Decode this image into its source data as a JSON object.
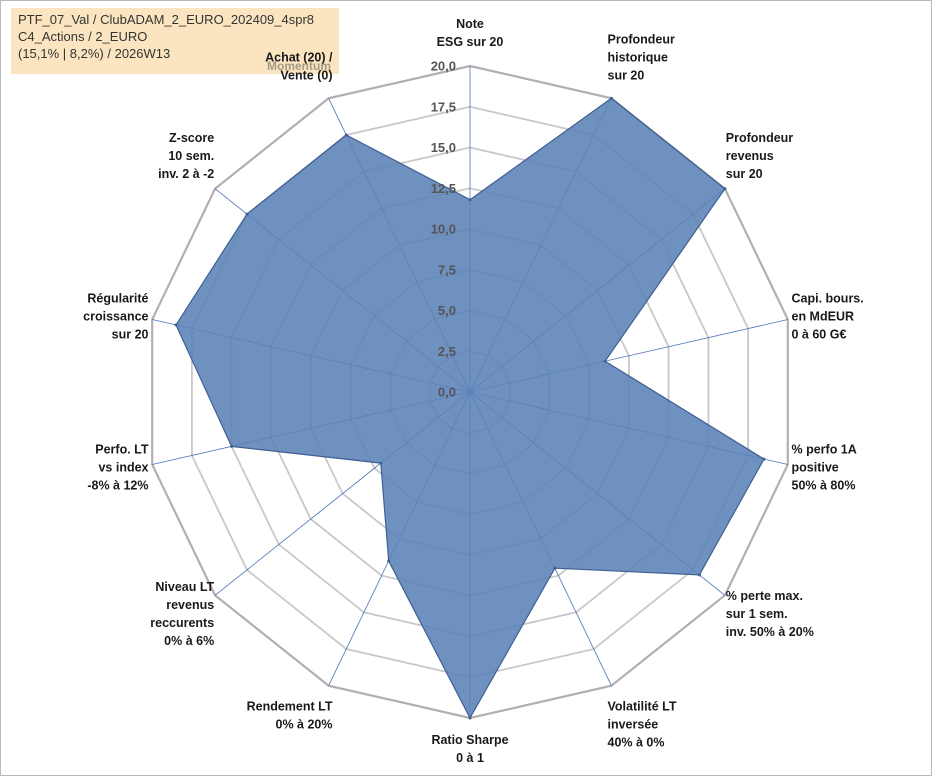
{
  "info": {
    "line1": "PTF_07_Val / ClubADAM_2_EURO_202409_4spr8",
    "line2": "C4_Actions / 2_EURO",
    "line3": "(15,1% | 8,2%) / 2026W13"
  },
  "momentum_label": "Momentum",
  "colors": {
    "fill": "#5b82b7",
    "stroke": "#3e5f92",
    "grid": "#c8c8c8",
    "outer_grid": "#b0b0b0",
    "spoke": "#4a74b8"
  },
  "chart_data": {
    "type": "radar",
    "rmin": 0,
    "rmax": 20,
    "ticks": [
      "0,0",
      "2,5",
      "5,0",
      "7,5",
      "10,0",
      "12,5",
      "15,0",
      "17,5",
      "20,0"
    ],
    "categories": [
      [
        "Note",
        "ESG sur 20"
      ],
      [
        "Profondeur",
        "historique",
        "sur 20"
      ],
      [
        "Profondeur",
        "revenus",
        "sur 20"
      ],
      [
        "Capi. bours.",
        "en MdEUR",
        "0 à 60 G€"
      ],
      [
        "% perfo 1A",
        "positive",
        "50% à 80%"
      ],
      [
        "% perte max.",
        "sur 1 sem.",
        "inv. 50% à 20%"
      ],
      [
        "Volatilité LT",
        "inversée",
        "40% à 0%"
      ],
      [
        "Ratio Sharpe",
        "0 à 1"
      ],
      [
        "Rendement LT",
        "0% à 20%"
      ],
      [
        "Niveau LT",
        "revenus",
        "reccurents",
        "0% à 6%"
      ],
      [
        "Perfo. LT",
        "vs index",
        "-8% à 12%"
      ],
      [
        "Régularité",
        "croissance",
        "sur 20"
      ],
      [
        "Z-score",
        "10 sem.",
        "inv. 2 à -2"
      ],
      [
        "Achat (20) /",
        "Vente (0)"
      ]
    ],
    "values": [
      11.8,
      20,
      20,
      8.5,
      18.5,
      18,
      12,
      20,
      11.5,
      7,
      15,
      18.5,
      17.5,
      17.5
    ]
  }
}
